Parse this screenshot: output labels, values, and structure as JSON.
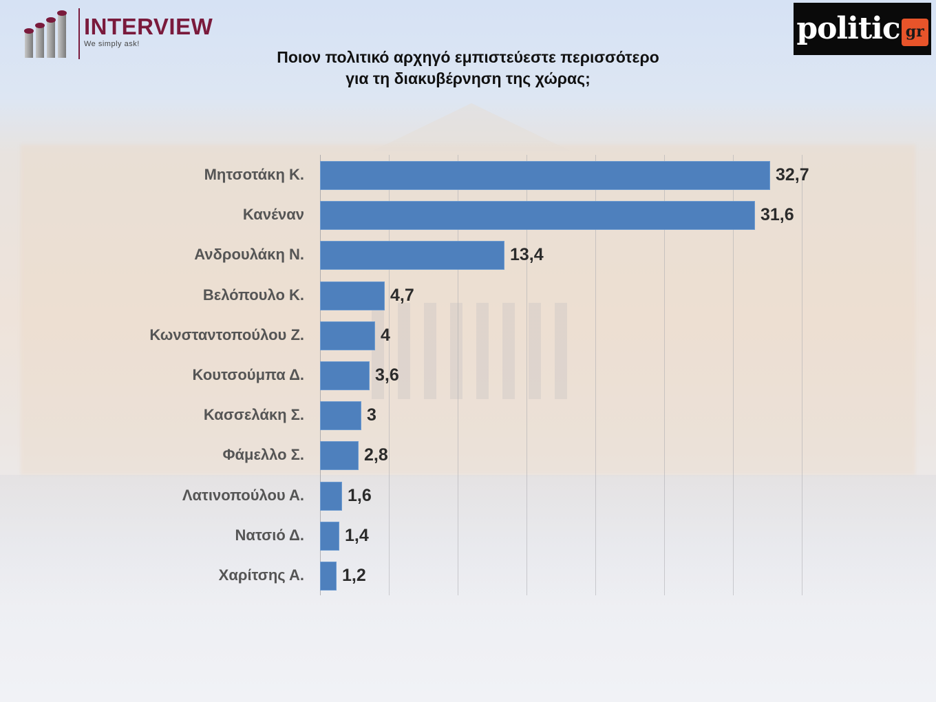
{
  "header": {
    "interview_logo": {
      "title": "INTERVIEW",
      "tagline": "We simply ask!",
      "color": "#7a1a3c"
    },
    "politic_logo": {
      "name": "politic",
      "suffix": "gr",
      "accent": "#e8542a"
    },
    "title_line1": "Ποιον πολιτικό αρχηγό εμπιστεύεστε περισσότερο",
    "title_line2": "για τη διακυβέρνηση της χώρας;"
  },
  "chart_data": {
    "type": "bar",
    "orientation": "horizontal",
    "title": "Ποιον πολιτικό αρχηγό εμπιστεύεστε περισσότερο για τη διακυβέρνηση της χώρας;",
    "xlabel": "",
    "ylabel": "",
    "xlim": [
      0,
      35
    ],
    "grid": true,
    "gridline_interval": 5,
    "bar_color": "#4e80bd",
    "categories": [
      "Μητσοτάκη Κ.",
      "Κανέναν",
      "Ανδρουλάκη Ν.",
      "Βελόπουλο Κ.",
      "Κωνσταντοπούλου Ζ.",
      "Κουτσούμπα Δ.",
      "Κασσελάκη Σ.",
      "Φάμελλο Σ.",
      "Λατινοπούλου Α.",
      "Νατσιό Δ.",
      "Χαρίτσης Α."
    ],
    "values": [
      32.7,
      31.6,
      13.4,
      4.7,
      4,
      3.6,
      3,
      2.8,
      1.6,
      1.4,
      1.2
    ],
    "value_labels": [
      "32,7",
      "31,6",
      "13,4",
      "4,7",
      "4",
      "3,6",
      "3",
      "2,8",
      "1,6",
      "1,4",
      "1,2"
    ]
  }
}
